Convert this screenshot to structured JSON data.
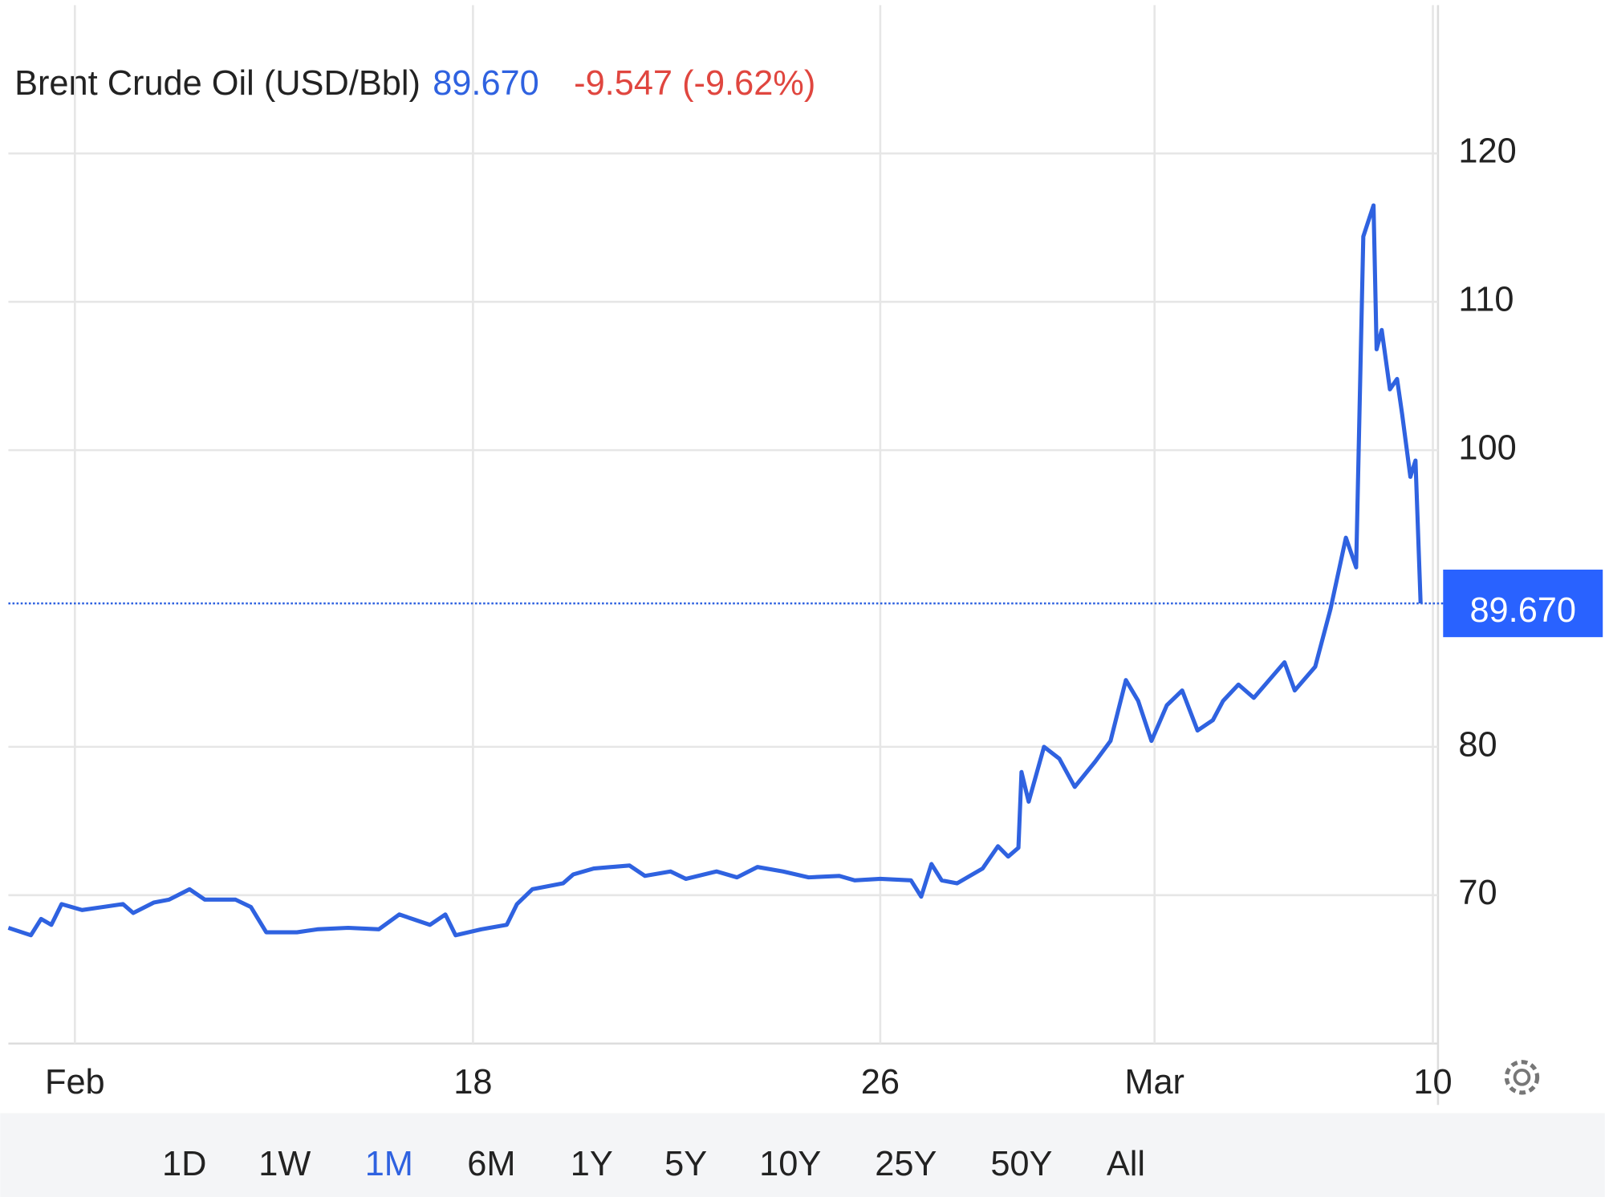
{
  "header": {
    "title": "Brent Crude Oil (USD/Bbl)",
    "price": "89.670",
    "change": "-9.547 (-9.62%)"
  },
  "chart_data": {
    "type": "line",
    "x": [
      0,
      22,
      32,
      42,
      52,
      72,
      92,
      112,
      122,
      142,
      157,
      177,
      192,
      222,
      237,
      252,
      282,
      302,
      332,
      362,
      382,
      412,
      427,
      437,
      462,
      487,
      497,
      512,
      542,
      552,
      572,
      607,
      622,
      647,
      662,
      692,
      712,
      732,
      757,
      782,
      812,
      827,
      852,
      882,
      892,
      902,
      912,
      927,
      952,
      967,
      977,
      987,
      990,
      997,
      1012,
      1027,
      1042,
      1062,
      1077,
      1092,
      1104,
      1117,
      1132,
      1147,
      1162,
      1177,
      1187,
      1202,
      1217,
      1247,
      1257,
      1277,
      1292,
      1307,
      1317,
      1324,
      1334,
      1337,
      1342,
      1350,
      1357,
      1362,
      1370,
      1375,
      1380
    ],
    "series": [
      {
        "name": "Brent Crude Oil",
        "color": "#2f62e0",
        "values": [
          67.8,
          67.3,
          68.4,
          68.0,
          69.4,
          69.0,
          69.2,
          69.4,
          68.8,
          69.5,
          69.7,
          70.4,
          69.7,
          69.7,
          69.2,
          67.5,
          67.5,
          67.7,
          67.8,
          67.7,
          68.7,
          68.0,
          68.7,
          67.3,
          67.7,
          68.0,
          69.4,
          70.4,
          70.8,
          71.4,
          71.8,
          72.0,
          71.3,
          71.6,
          71.1,
          71.6,
          71.2,
          71.9,
          71.6,
          71.2,
          71.3,
          71.0,
          71.1,
          71.0,
          69.9,
          72.1,
          71.0,
          70.8,
          71.8,
          73.3,
          72.6,
          73.2,
          78.3,
          76.3,
          80.0,
          79.2,
          77.3,
          79.0,
          80.4,
          84.5,
          83.1,
          80.4,
          82.8,
          83.8,
          81.1,
          81.8,
          83.1,
          84.2,
          83.3,
          85.7,
          83.8,
          85.4,
          89.3,
          94.1,
          92.1,
          114.4,
          116.5,
          106.8,
          108.1,
          104.1,
          104.8,
          102.4,
          98.2,
          99.3,
          89.67
        ]
      }
    ],
    "xlim": [
      0,
      1397
    ],
    "xticks": [
      {
        "value": 65,
        "label": "Feb"
      },
      {
        "value": 454,
        "label": "18"
      },
      {
        "value": 852,
        "label": "26"
      },
      {
        "value": 1120,
        "label": "Mar"
      },
      {
        "value": 1392,
        "label": "10"
      }
    ],
    "ylim": [
      60,
      130
    ],
    "yticks": [
      70,
      80,
      100,
      110,
      120
    ],
    "grid": true
  },
  "range_buttons": [
    "1D",
    "1W",
    "1M",
    "6M",
    "1Y",
    "5Y",
    "10Y",
    "25Y",
    "50Y",
    "All"
  ],
  "selected_button": 2
}
